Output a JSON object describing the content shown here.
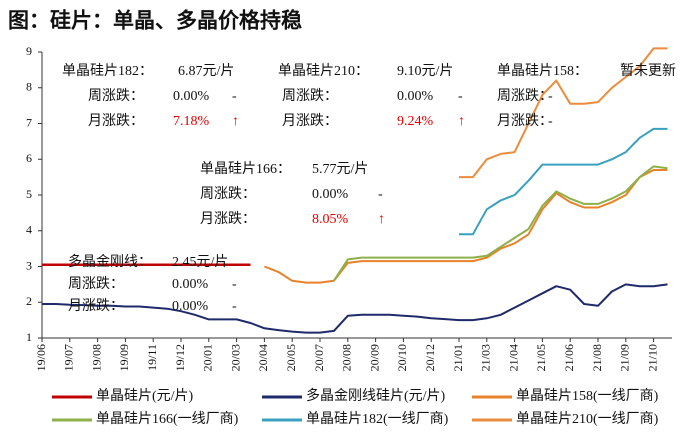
{
  "chart_data": {
    "type": "line",
    "title": "图：硅片：单晶、多晶价格持稳",
    "categories": [
      "19/06",
      null,
      "19/07",
      null,
      "19/08",
      null,
      "19/09",
      null,
      "19/11",
      null,
      "19/12",
      null,
      "20/01",
      null,
      "20/03",
      null,
      "20/04",
      null,
      "20/05",
      null,
      "20/07",
      null,
      "20/08",
      null,
      "20/09",
      null,
      "20/10",
      null,
      "20/12",
      null,
      "21/01",
      null,
      "21/03",
      null,
      "21/04",
      null,
      "21/05",
      null,
      "21/06",
      null,
      "21/08",
      null,
      "21/09",
      null,
      "21/10",
      null
    ],
    "ylim": [
      1,
      9
    ],
    "yticks": [
      1,
      2,
      3,
      4,
      5,
      6,
      7,
      8,
      9
    ],
    "series": [
      {
        "name": "单晶硅片(元/片)",
        "color": "#c00000",
        "values": [
          3.05,
          3.05,
          3.05,
          3.05,
          3.05,
          3.05,
          3.05,
          3.05,
          3.05,
          3.05,
          3.05,
          3.05,
          3.05,
          3.05,
          3.05,
          3.05,
          null,
          null,
          null,
          null,
          null,
          null,
          null,
          null,
          null,
          null,
          null,
          null,
          null,
          null,
          null,
          null,
          null,
          null,
          null,
          null,
          null,
          null,
          null,
          null,
          null,
          null,
          null,
          null,
          null,
          null
        ]
      },
      {
        "name": "多晶金刚线硅片(元/片)",
        "color": "#1f2a6b",
        "values": [
          1.95,
          1.95,
          1.93,
          1.92,
          1.9,
          1.9,
          1.88,
          1.88,
          1.85,
          1.82,
          1.75,
          1.65,
          1.52,
          1.52,
          1.52,
          1.42,
          1.27,
          1.22,
          1.18,
          1.15,
          1.15,
          1.2,
          1.62,
          1.65,
          1.65,
          1.65,
          1.62,
          1.6,
          1.55,
          1.53,
          1.5,
          1.5,
          1.55,
          1.65,
          1.85,
          2.05,
          2.25,
          2.45,
          2.35,
          1.95,
          1.9,
          2.3,
          2.5,
          2.45,
          2.45,
          2.5
        ]
      },
      {
        "name": "单晶硅片158(一线厂商)",
        "color": "#e8822a",
        "values": [
          null,
          null,
          null,
          null,
          null,
          null,
          null,
          null,
          null,
          null,
          null,
          null,
          null,
          null,
          null,
          null,
          3.0,
          2.85,
          2.6,
          2.55,
          2.55,
          2.6,
          3.1,
          3.15,
          3.15,
          3.15,
          3.15,
          3.15,
          3.15,
          3.15,
          3.15,
          3.15,
          3.25,
          3.5,
          3.65,
          3.9,
          4.6,
          5.05,
          4.8,
          4.65,
          4.65,
          4.8,
          5.0,
          5.5,
          5.7,
          5.7
        ]
      },
      {
        "name": "单晶硅片166(一线厂商)",
        "color": "#8db048",
        "values": [
          null,
          null,
          null,
          null,
          null,
          null,
          null,
          null,
          null,
          null,
          null,
          null,
          null,
          null,
          null,
          null,
          null,
          null,
          null,
          null,
          null,
          2.6,
          3.2,
          3.25,
          3.25,
          3.25,
          3.25,
          3.25,
          3.25,
          3.25,
          3.25,
          3.25,
          3.3,
          3.55,
          3.8,
          4.05,
          4.7,
          5.1,
          4.9,
          4.75,
          4.75,
          4.9,
          5.1,
          5.5,
          5.8,
          5.75
        ]
      },
      {
        "name": "单晶硅片182(一线厂商)",
        "color": "#3aa0c0",
        "values": [
          null,
          null,
          null,
          null,
          null,
          null,
          null,
          null,
          null,
          null,
          null,
          null,
          null,
          null,
          null,
          null,
          null,
          null,
          null,
          null,
          null,
          null,
          null,
          null,
          null,
          null,
          null,
          null,
          null,
          null,
          3.9,
          3.9,
          4.6,
          4.85,
          5.0,
          5.4,
          5.85,
          5.85,
          5.85,
          5.85,
          5.85,
          6.0,
          6.2,
          6.6,
          6.85,
          6.85
        ]
      },
      {
        "name": "单晶硅片210(一线厂商)",
        "color": "#ec8c3c",
        "values": [
          null,
          null,
          null,
          null,
          null,
          null,
          null,
          null,
          null,
          null,
          null,
          null,
          null,
          null,
          null,
          null,
          null,
          null,
          null,
          null,
          null,
          null,
          null,
          null,
          null,
          null,
          null,
          null,
          null,
          null,
          5.5,
          5.5,
          6.0,
          6.15,
          6.2,
          7.0,
          7.8,
          8.2,
          7.55,
          7.55,
          7.6,
          8.0,
          8.3,
          8.6,
          9.1,
          9.1
        ]
      }
    ],
    "annotations": [
      {
        "rows": [
          [
            "单晶硅片182：",
            "6.87元/片"
          ],
          [
            "周涨跌：",
            "0.00%",
            "-"
          ],
          [
            "月涨跌：",
            "7.18%",
            "↑"
          ]
        ]
      },
      {
        "rows": [
          [
            "单晶硅片210：",
            "9.10元/片"
          ],
          [
            "周涨跌：",
            "0.00%",
            "-"
          ],
          [
            "月涨跌：",
            "9.24%",
            "↑"
          ]
        ]
      },
      {
        "rows": [
          [
            "单晶硅片158：",
            "暂未更新"
          ],
          [
            "周涨跌：",
            "-"
          ],
          [
            "月涨跌：",
            "-"
          ]
        ]
      },
      {
        "rows": [
          [
            "单晶硅片166：",
            "5.77元/片"
          ],
          [
            "周涨跌：",
            "0.00%",
            "-"
          ],
          [
            "月涨跌：",
            "8.05%",
            "↑"
          ]
        ]
      },
      {
        "rows": [
          [
            "多晶金刚线：",
            "2.45元/片"
          ],
          [
            "周涨跌：",
            "0.00%",
            "-"
          ],
          [
            "月涨跌：",
            "0.00%",
            "-"
          ]
        ]
      }
    ]
  }
}
